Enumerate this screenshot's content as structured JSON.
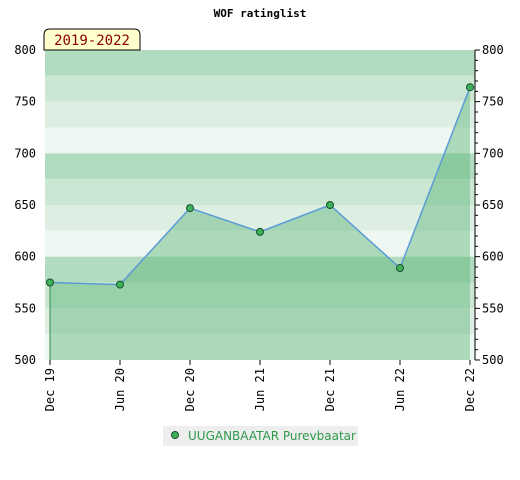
{
  "chart_data": {
    "type": "area",
    "title": "WOF ratinglist",
    "period_label": "2019-2022",
    "ylim": [
      500,
      800
    ],
    "y_ticks": [
      500,
      550,
      600,
      650,
      700,
      750,
      800
    ],
    "x_tick_labels": [
      "Dec 19",
      "Jun 20",
      "Dec 20",
      "Jun 21",
      "Dec 21",
      "Jun 22",
      "Dec 22"
    ],
    "series": [
      {
        "name": "UUGANBAATAR Purevbaatar",
        "x": [
          "Dec 19",
          "Jun 20",
          "Dec 20",
          "Jun 21",
          "Dec 21",
          "Jun 22",
          "Dec 22"
        ],
        "values": [
          575,
          573,
          647,
          624,
          650,
          589,
          764
        ]
      }
    ],
    "legend_position": "bottom",
    "colors": {
      "line": "#5b9bd5",
      "marker_fill": "#3cb35a",
      "band_dark": "#b2dcc0",
      "band_mid": "#cbe7d4",
      "band_light": "#ddefe3",
      "band_lightest": "#eef7f1",
      "area_fill": "#5cb477",
      "legend_bg": "#eeeeee",
      "legend_text": "#2e9a4a"
    }
  }
}
